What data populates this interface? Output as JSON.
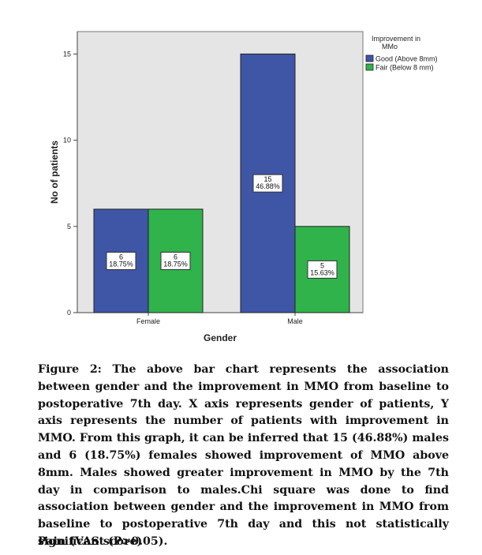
{
  "chart_data": {
    "type": "bar",
    "categories": [
      "Female",
      "Male"
    ],
    "series": [
      {
        "name": "Good (Above 8mm)",
        "values": [
          6,
          15
        ],
        "labels": [
          "6\n18.75%",
          "15\n46.88%"
        ],
        "color": "#3f55a6"
      },
      {
        "name": "Fair (Below 8 mm)",
        "values": [
          6,
          5
        ],
        "labels": [
          "6\n18.75%",
          "5\n15.63%"
        ],
        "color": "#2fb34a"
      }
    ],
    "xlabel": "Gender",
    "ylabel": "No of patients",
    "ylim": [
      0,
      16.3
    ],
    "yticks": [
      0,
      5,
      10,
      15
    ],
    "legend_title": "Improvement in MMo",
    "legend_position": "top-right",
    "plot_background": "#e5e5e5",
    "grid": false
  },
  "caption": "Figure 2: The above bar chart represents the association between gender and the improvement in MMO from baseline to postoperative 7th day. X axis represents gender of patients, Y axis represents the number of patients with improvement in MMO. From this graph, it can be inferred that 15 (46.88%) males and 6 (18.75%) females showed improvement of MMO above 8mm. Males showed greater improvement in MMO by the 7th day in comparison to males.Chi square was done to find association between gender and the improvement in MMO from baseline to postoperative 7th day and this not statistically significant (P>0.05).",
  "section_heading": "Pain (VAS score)"
}
